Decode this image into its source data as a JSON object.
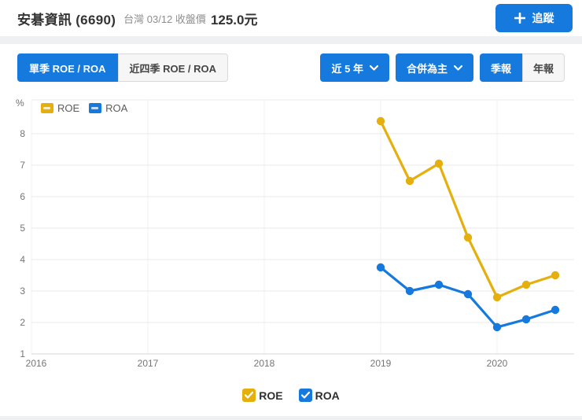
{
  "colors": {
    "accent_blue": "#1579DE",
    "roe_yellow": "#E5AF0D",
    "roa_blue": "#1579DE",
    "grid_line": "#e9e9e9",
    "axis_line": "#d7d7d7"
  },
  "header": {
    "title": "安碁資訊 (6690)",
    "subtitle": "台灣 03/12 收盤價",
    "price": "125.0元",
    "follow_label": "追蹤"
  },
  "toolbar": {
    "tabs": [
      {
        "label": "單季 ROE / ROA",
        "active": true
      },
      {
        "label": "近四季 ROE / ROA",
        "active": false
      }
    ],
    "dropdowns": [
      {
        "label": "近 5 年"
      },
      {
        "label": "合併為主"
      }
    ],
    "report_toggle": [
      {
        "label": "季報",
        "active": true
      },
      {
        "label": "年報",
        "active": false
      }
    ]
  },
  "chart_data": {
    "type": "line",
    "unit_label": "%",
    "x": [
      2019.0,
      2019.25,
      2019.5,
      2019.75,
      2020.0,
      2020.25,
      2020.5
    ],
    "series": [
      {
        "name": "ROE",
        "color": "#E5AF0D",
        "values": [
          8.4,
          6.5,
          7.05,
          4.7,
          2.8,
          3.2,
          3.5
        ]
      },
      {
        "name": "ROA",
        "color": "#1579DE",
        "values": [
          3.75,
          3.0,
          3.2,
          2.9,
          1.85,
          2.1,
          2.4
        ]
      }
    ],
    "xticks": [
      2016,
      2017,
      2018,
      2019,
      2020
    ],
    "yticks": [
      1,
      2,
      3,
      4,
      5,
      6,
      7,
      8
    ],
    "xlim": [
      2016,
      2020.65
    ],
    "ylim": [
      1,
      9
    ],
    "grid": true,
    "legend_position": "top-left"
  },
  "footer": {
    "checkboxes": [
      {
        "label": "ROE",
        "checked": true
      },
      {
        "label": "ROA",
        "checked": true
      }
    ]
  }
}
